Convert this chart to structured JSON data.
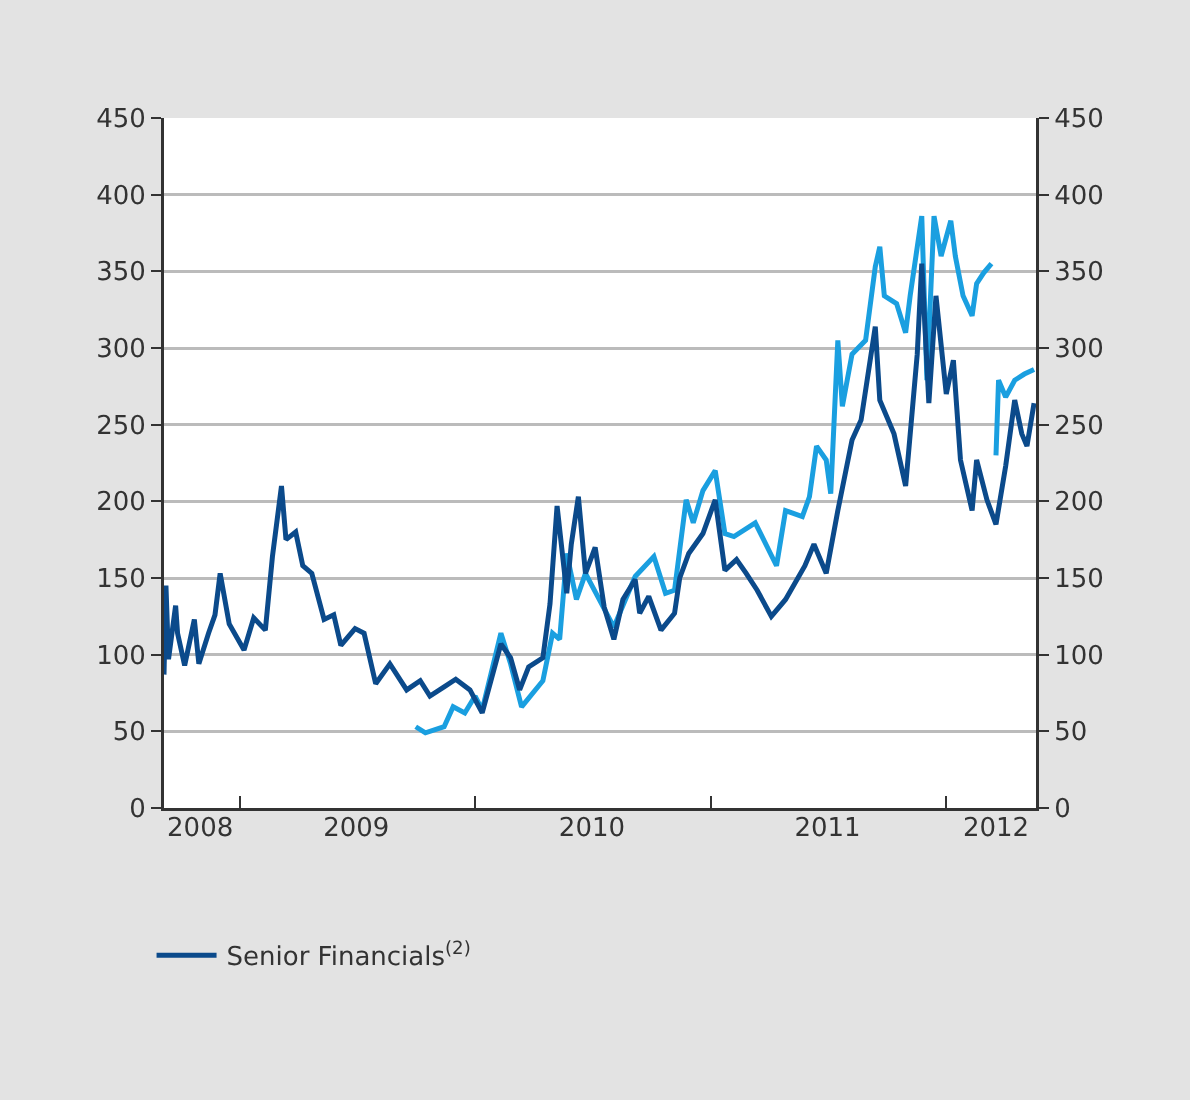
{
  "chart_data": {
    "type": "line",
    "xlim": [
      "2008-09-06",
      "2012-05-19"
    ],
    "xticks": [
      {
        "value": "2008-11-01",
        "label": "2008"
      },
      {
        "value": "2009-01-01",
        "label": null
      },
      {
        "value": "2009-07-01",
        "label": "2009"
      },
      {
        "value": "2010-01-01",
        "label": null
      },
      {
        "value": "2010-07-01",
        "label": "2010"
      },
      {
        "value": "2011-01-01",
        "label": null
      },
      {
        "value": "2011-07-01",
        "label": "2011"
      },
      {
        "value": "2012-01-01",
        "label": null
      },
      {
        "value": "2012-03-18",
        "label": "2012"
      }
    ],
    "ylim": [
      0,
      450
    ],
    "yticks": [
      0,
      50,
      100,
      150,
      200,
      250,
      300,
      350,
      400,
      450
    ],
    "y2lim": [
      0,
      450
    ],
    "y2ticks": [
      0,
      50,
      100,
      150,
      200,
      250,
      300,
      350,
      400,
      450
    ],
    "grid": "y",
    "legend": "bottom left",
    "series": [
      {
        "color": "#1a9fe0",
        "x": [
          "2009-10-01",
          "2009-10-16",
          "2009-11-14",
          "2009-11-28",
          "2009-12-16",
          "2010-01-01",
          "2010-01-12",
          "2010-02-10",
          "2010-02-25",
          "2010-03-14",
          "2010-04-16",
          "2010-05-01",
          "2010-05-12",
          "2010-05-23",
          "2010-06-07",
          "2010-06-21",
          "2010-08-04",
          "2010-09-06",
          "2010-10-05",
          "2010-10-23",
          "2010-11-06",
          "2010-11-24",
          "2010-12-05",
          "2010-12-20",
          "2011-01-08",
          "2011-01-23",
          "2011-02-06",
          "2011-03-11",
          "2011-04-13",
          "2011-04-27",
          "2011-05-23",
          "2011-06-03",
          "2011-06-14",
          "2011-06-29",
          "2011-07-06",
          "2011-07-17",
          "2011-07-24",
          "2011-08-08",
          "2011-08-29",
          "2011-09-13",
          "2011-09-20",
          "2011-09-27",
          "2011-10-16",
          "2011-10-30",
          "2011-11-06",
          "2011-11-24",
          "2011-12-02",
          "2011-12-13",
          "2011-12-24",
          "2012-01-08",
          "2012-01-15",
          "2012-01-27",
          "2012-02-10",
          "2012-02-17",
          "2012-02-28",
          "2012-03-11",
          "2012-03-14",
          "2012-03-18",
          "2012-03-22",
          "2012-04-02",
          "2012-04-16",
          "2012-05-01",
          "2012-05-16"
        ],
        "values": [
          53,
          49,
          53,
          66,
          62,
          73,
          64,
          114,
          94,
          66,
          83,
          114,
          110,
          166,
          136,
          153,
          118,
          151,
          164,
          140,
          142,
          201,
          186,
          207,
          220,
          179,
          177,
          186,
          158,
          194,
          190,
          203,
          236,
          227,
          205,
          305,
          262,
          296,
          305,
          353,
          366,
          334,
          329,
          310,
          334,
          386,
          279,
          386,
          360,
          383,
          360,
          334,
          321,
          342,
          349,
          355,
          null,
          230,
          279,
          268,
          279,
          283,
          286
        ]
      },
      {
        "name": "Senior Financials$^{(2)}$",
        "color": "#0b4a8b",
        "x": [
          "2008-09-06",
          "2008-09-09",
          "2008-09-13",
          "2008-09-24",
          "2008-09-27",
          "2008-10-08",
          "2008-10-23",
          "2008-10-30",
          "2008-11-14",
          "2008-11-24",
          "2008-12-02",
          "2008-12-16",
          "2009-01-08",
          "2009-01-23",
          "2009-02-10",
          "2009-02-21",
          "2009-03-07",
          "2009-03-14",
          "2009-03-29",
          "2009-04-09",
          "2009-04-23",
          "2009-05-12",
          "2009-05-27",
          "2009-06-07",
          "2009-06-29",
          "2009-07-13",
          "2009-07-31",
          "2009-08-22",
          "2009-09-17",
          "2009-10-08",
          "2009-10-23",
          "2009-11-14",
          "2009-12-02",
          "2009-12-24",
          "2010-01-12",
          "2010-02-10",
          "2010-02-25",
          "2010-03-11",
          "2010-03-25",
          "2010-04-16",
          "2010-04-27",
          "2010-05-08",
          "2010-05-23",
          "2010-05-30",
          "2010-06-10",
          "2010-06-21",
          "2010-07-06",
          "2010-07-20",
          "2010-08-04",
          "2010-08-18",
          "2010-09-06",
          "2010-09-13",
          "2010-09-27",
          "2010-10-16",
          "2010-11-06",
          "2010-11-14",
          "2010-11-28",
          "2010-12-20",
          "2011-01-08",
          "2011-01-23",
          "2011-02-10",
          "2011-02-25",
          "2011-03-14",
          "2011-04-05",
          "2011-04-27",
          "2011-05-27",
          "2011-06-10",
          "2011-06-29",
          "2011-07-17",
          "2011-08-08",
          "2011-08-22",
          "2011-09-13",
          "2011-09-20",
          "2011-10-12",
          "2011-10-30",
          "2011-11-17",
          "2011-11-24",
          "2011-12-05",
          "2011-12-16",
          "2012-01-01",
          "2012-01-12",
          "2012-01-23",
          "2012-02-10",
          "2012-02-17",
          "2012-03-04",
          "2012-03-18",
          "2012-04-02",
          "2012-04-16",
          "2012-04-27",
          "2012-05-05",
          "2012-05-16"
        ],
        "values": [
          87,
          145,
          97,
          132,
          114,
          93,
          123,
          94,
          114,
          126,
          153,
          120,
          103,
          124,
          116,
          164,
          210,
          175,
          180,
          158,
          153,
          123,
          126,
          106,
          117,
          114,
          81,
          94,
          77,
          83,
          73,
          79,
          84,
          77,
          62,
          107,
          98,
          77,
          92,
          98,
          133,
          197,
          140,
          172,
          203,
          153,
          170,
          131,
          110,
          136,
          149,
          127,
          138,
          116,
          127,
          150,
          166,
          179,
          201,
          155,
          162,
          153,
          142,
          125,
          136,
          158,
          172,
          153,
          194,
          240,
          253,
          314,
          266,
          244,
          210,
          296,
          355,
          264,
          334,
          270,
          292,
          227,
          194,
          227,
          201,
          185,
          223,
          266,
          244,
          236,
          264
        ]
      }
    ]
  }
}
